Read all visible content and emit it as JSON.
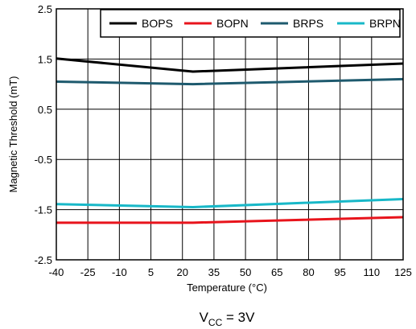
{
  "chart_data": {
    "type": "line",
    "title": "",
    "xlabel": "Temperature (°C)",
    "ylabel": "Magnetic Threshold (mT)",
    "xlim": [
      -40,
      125
    ],
    "ylim": [
      -2.5,
      2.5
    ],
    "x_ticks": [
      -40,
      -25,
      -10,
      5,
      20,
      35,
      50,
      65,
      80,
      95,
      110,
      125
    ],
    "y_ticks": [
      2.5,
      1.5,
      0.5,
      -0.5,
      -1.5,
      -2.5
    ],
    "x_tick_labels": [
      "-40",
      "-25",
      "-10",
      "5",
      "20",
      "35",
      "50",
      "65",
      "80",
      "95",
      "110",
      "125"
    ],
    "y_tick_labels": [
      "2.5",
      "1.5",
      "0.5",
      "-0.5",
      "-1.5",
      "-2.5"
    ],
    "grid": true,
    "legend_position": "top-right",
    "series": [
      {
        "name": "BOPS",
        "color": "#000000",
        "x": [
          -40,
          25,
          125
        ],
        "y": [
          1.51,
          1.25,
          1.41
        ]
      },
      {
        "name": "BOPN",
        "color": "#e8141c",
        "x": [
          -40,
          25,
          125
        ],
        "y": [
          -1.76,
          -1.76,
          -1.65
        ]
      },
      {
        "name": "BRPS",
        "color": "#1e5a6e",
        "x": [
          -40,
          25,
          125
        ],
        "y": [
          1.05,
          1.0,
          1.1
        ]
      },
      {
        "name": "BRPN",
        "color": "#18b8c8",
        "x": [
          -40,
          25,
          125
        ],
        "y": [
          -1.39,
          -1.45,
          -1.29
        ]
      }
    ],
    "caption": {
      "prefix": "V",
      "subscript": "CC",
      "suffix": " = 3V"
    }
  }
}
